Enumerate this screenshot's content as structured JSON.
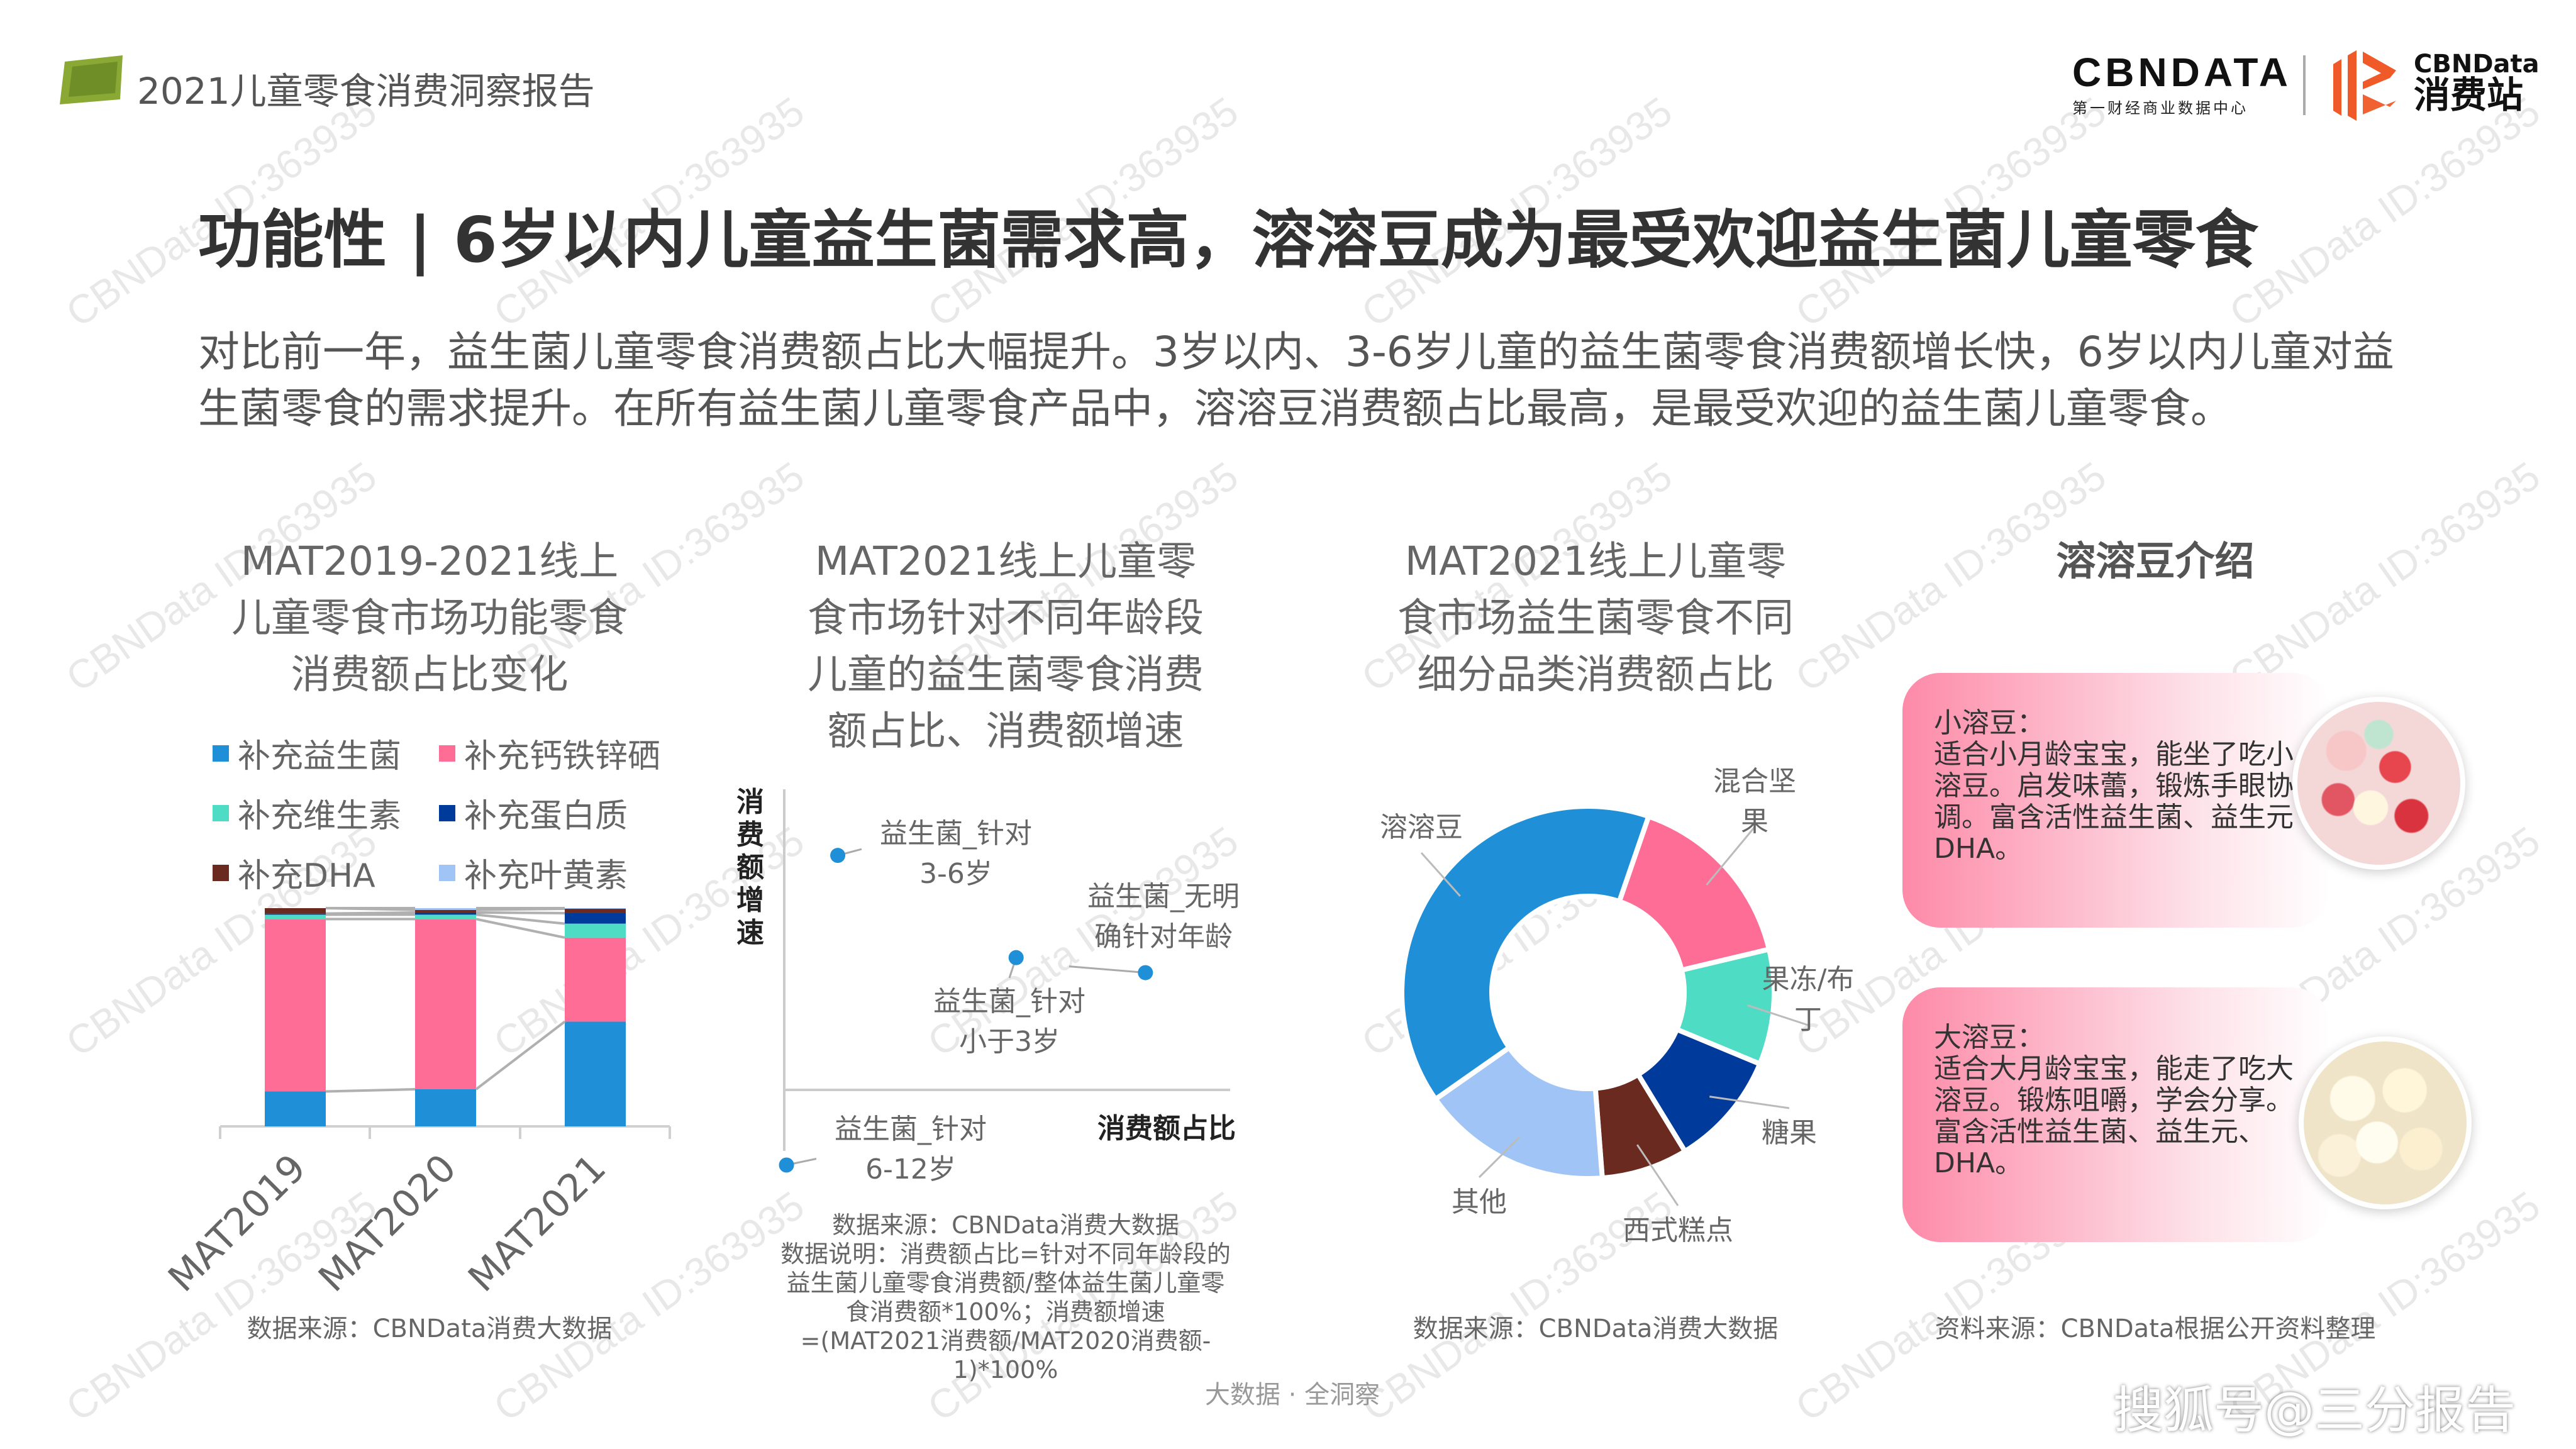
{
  "header": {
    "doc_title": "2021儿童零食消费洞察报告",
    "logo1_text": "CBNDATA",
    "logo1_sub": "第一财经商业数据中心",
    "logo2_text": "CBNData",
    "logo2_sub": "消费站",
    "brand_orange": "#f05a28"
  },
  "headline": "功能性 | 6岁以内儿童益生菌需求高，溶溶豆成为最受欢迎益生菌儿童零食",
  "intro": "对比前一年，益生菌儿童零食消费额占比大幅提升。3岁以内、3-6岁儿童的益生菌零食消费额增长快，6岁以内儿童对益生菌零食的需求提升。在所有益生菌儿童零食产品中，溶溶豆消费额占比最高，是最受欢迎的益生菌儿童零食。",
  "watermark": "CBNData ID:363935",
  "columns": [
    {
      "title": [
        "MAT2019-2021线上",
        "儿童零食市场功能零食",
        "消费额占比变化"
      ],
      "source": "数据来源：CBNData消费大数据"
    },
    {
      "title": [
        "MAT2021线上儿童零",
        "食市场针对不同年龄段",
        "儿童的益生菌零食消费",
        "额占比、消费额增速"
      ],
      "source": [
        "数据来源：CBNData消费大数据",
        "数据说明：消费额占比=针对不同年龄段的",
        "益生菌儿童零食消费额/整体益生菌儿童零",
        "食消费额*100%；消费额增速",
        "=(MAT2021消费额/MAT2020消费额-",
        "1)*100%"
      ]
    },
    {
      "title": [
        "MAT2021线上儿童零",
        "食市场益生菌零食不同",
        "细分品类消费额占比"
      ],
      "source": "数据来源：CBNData消费大数据"
    },
    {
      "title": [
        "溶溶豆介绍"
      ],
      "source": "资料来源：CBNData根据公开资料整理"
    }
  ],
  "chart_data": [
    {
      "type": "bar",
      "stacked": true,
      "categories": [
        "MAT2019",
        "MAT2020",
        "MAT2021"
      ],
      "ylim": [
        0,
        100
      ],
      "legend_position": "top",
      "series": [
        {
          "name": "补充益生菌",
          "color": "#1f8fd8",
          "values": [
            16,
            17,
            48
          ]
        },
        {
          "name": "补充钙铁锌硒",
          "color": "#fe6d96",
          "values": [
            79,
            78,
            38.5
          ]
        },
        {
          "name": "补充维生素",
          "color": "#4fdcc5",
          "values": [
            2,
            2,
            6.4
          ]
        },
        {
          "name": "补充蛋白质",
          "color": "#003b9c",
          "values": [
            0.5,
            1,
            4.8
          ]
        },
        {
          "name": "补充DHA",
          "color": "#6b2a1f",
          "values": [
            2.5,
            1.2,
            2
          ]
        },
        {
          "name": "补充叶黄素",
          "color": "#9fc4f5",
          "values": [
            0,
            0.8,
            0.3
          ]
        }
      ],
      "legend_order": [
        0,
        1,
        2,
        3,
        4,
        5
      ]
    },
    {
      "type": "scatter",
      "xlabel": "消费额占比",
      "ylabel": "消费额增速",
      "color": "#1f8fd8",
      "points": [
        {
          "label": [
            "益生菌_针对",
            "3-6岁"
          ],
          "x": 12,
          "y": 78
        },
        {
          "label": [
            "益生菌_针对",
            "小于3岁"
          ],
          "x": 52,
          "y": 44
        },
        {
          "label": [
            "益生菌_无明",
            "确针对年龄"
          ],
          "x": 81,
          "y": 39
        },
        {
          "label": [
            "益生菌_针对",
            "6-12岁"
          ],
          "x": 0.5,
          "y": -25
        }
      ]
    },
    {
      "type": "pie",
      "donut": true,
      "slices": [
        {
          "label": [
            "混合坚",
            "果"
          ],
          "value": 16,
          "color": "#fe6d96"
        },
        {
          "label": [
            "果冻/布",
            "丁"
          ],
          "value": 10,
          "color": "#4fdcc5"
        },
        {
          "label": [
            "糖果"
          ],
          "value": 10,
          "color": "#003b9c"
        },
        {
          "label": [
            "西式糕点"
          ],
          "value": 7.5,
          "color": "#6b2a1f"
        },
        {
          "label": [
            "其他"
          ],
          "value": 16.5,
          "color": "#9fc4f5"
        },
        {
          "label": [
            "溶溶豆"
          ],
          "value": 40,
          "color": "#1f8fd8"
        }
      ]
    }
  ],
  "products": [
    {
      "name": "小溶豆：",
      "lines": [
        "适合小月龄宝宝，能坐了吃小",
        "溶豆。启发味蕾，锻炼手眼协",
        "调。富含活性益生菌、益生元",
        "DHA。"
      ]
    },
    {
      "name": "大溶豆：",
      "lines": [
        "适合大月龄宝宝，能走了吃大",
        "溶豆。锻炼咀嚼，学会分享。",
        "富含活性益生菌、益生元、",
        "DHA。"
      ]
    }
  ],
  "footer": "大数据 · 全洞察",
  "overlay_watermark": "搜狐号@三分报告"
}
